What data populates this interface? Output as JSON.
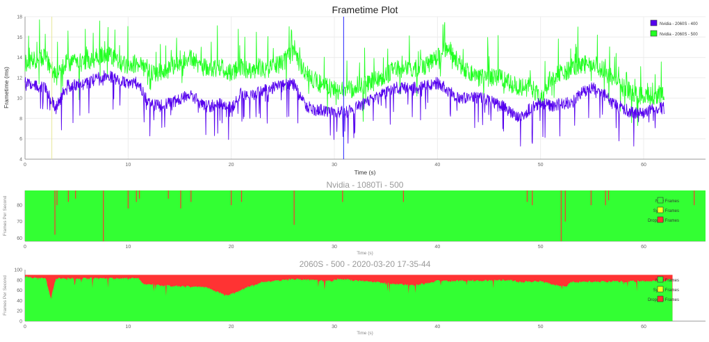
{
  "chart_data": [
    {
      "type": "line",
      "title": "Frametime Plot",
      "xlabel": "Time (s)",
      "ylabel": "Frametime (ms)",
      "xlim": [
        0,
        66
      ],
      "ylim": [
        4,
        18
      ],
      "x_ticks": [
        "0",
        "10",
        "20",
        "30",
        "40",
        "50",
        "60"
      ],
      "y_ticks": [
        "4",
        "6",
        "8",
        "10",
        "12",
        "14",
        "16",
        "18"
      ],
      "grid": true,
      "legend_position": "top-right",
      "markers": [
        {
          "x": 2.6,
          "color": "#e6e69a"
        },
        {
          "x": 30.9,
          "color": "#2222ff"
        }
      ],
      "series": [
        {
          "name": "Nvidia - 2060S - 400",
          "color": "#5500ee",
          "x": [
            0,
            2,
            3,
            4,
            5,
            6,
            7,
            8,
            9,
            10,
            11,
            12,
            13,
            14,
            15,
            16,
            17,
            18,
            19,
            20,
            21,
            22,
            23,
            24,
            25,
            26,
            27,
            28,
            29,
            30,
            31,
            32,
            33,
            34,
            35,
            36,
            37,
            38,
            39,
            40,
            41,
            42,
            43,
            44,
            45,
            46,
            47,
            48,
            49,
            50,
            51,
            52,
            53,
            54,
            55,
            56,
            57,
            58,
            59,
            60,
            61,
            62
          ],
          "values": [
            11.5,
            11,
            9,
            11.2,
            11.3,
            11.4,
            12,
            12.2,
            11.8,
            11.5,
            11.5,
            9.5,
            9.2,
            9.5,
            9.8,
            10.5,
            9.5,
            9.2,
            9.5,
            9,
            10.5,
            10.2,
            10.8,
            11,
            11.2,
            11.5,
            9.5,
            8.8,
            8.8,
            8.5,
            8.7,
            9,
            9.5,
            10,
            10.5,
            11,
            11,
            11,
            11.2,
            11.5,
            10.8,
            10,
            10,
            10,
            9.8,
            9.5,
            8.7,
            8,
            9,
            9.5,
            9.2,
            9.5,
            9.5,
            10.5,
            11,
            10.5,
            9.5,
            9,
            8.5,
            8.5,
            9,
            9
          ],
          "noise": [
            0.6,
            1.2
          ]
        },
        {
          "name": "Nvidia - 2060S - 500",
          "color": "#22ff22",
          "x": [
            0,
            2,
            3,
            4,
            5,
            6,
            7,
            8,
            9,
            10,
            11,
            12,
            13,
            14,
            15,
            16,
            17,
            18,
            19,
            20,
            21,
            22,
            23,
            24,
            25,
            26,
            27,
            28,
            29,
            30,
            31,
            32,
            33,
            34,
            35,
            36,
            37,
            38,
            39,
            40,
            41,
            42,
            43,
            44,
            45,
            46,
            47,
            48,
            49,
            50,
            51,
            52,
            53,
            54,
            55,
            56,
            57,
            58,
            59,
            60,
            61,
            62
          ],
          "values": [
            13.5,
            14,
            12,
            13.5,
            13.5,
            13.5,
            14,
            14.5,
            13.5,
            13.2,
            13.5,
            12.5,
            12.5,
            13,
            13.5,
            14,
            13.2,
            12.8,
            13,
            12.5,
            13,
            12.5,
            12.8,
            13,
            13.5,
            14.5,
            12.8,
            11.8,
            11.2,
            10.8,
            10.7,
            11,
            11.3,
            11.8,
            12.2,
            12.8,
            13,
            13,
            13.2,
            14,
            15,
            13.5,
            12.5,
            12,
            12,
            12,
            11.5,
            11,
            11.2,
            10,
            12,
            12.5,
            12.8,
            13.2,
            13.5,
            12.8,
            12,
            11,
            10.5,
            10.2,
            10.2,
            10.5
          ],
          "noise": [
            0.9,
            1.8
          ]
        }
      ]
    },
    {
      "type": "area",
      "title": "Nvidia - 1080Ti - 500",
      "xlabel": "Time (s)",
      "ylabel": "Frames Per Second",
      "xlim": [
        0,
        66
      ],
      "ylim": [
        58,
        89
      ],
      "x_ticks": [
        "0",
        "10",
        "20",
        "30",
        "40",
        "50",
        "60"
      ],
      "y_ticks": [
        "60",
        "70",
        "80"
      ],
      "legend_position": "right",
      "legend": [
        {
          "label": "New Frames",
          "color": "#33ff33"
        },
        {
          "label": "Synth Frames",
          "color": "#ffff22"
        },
        {
          "label": "Dropped Frames",
          "color": "#ff3333"
        }
      ],
      "ceiling": 89,
      "x_end": 66,
      "drops": [
        {
          "x": 2.9,
          "to": 62
        },
        {
          "x": 3.1,
          "to": 80
        },
        {
          "x": 4.2,
          "to": 82
        },
        {
          "x": 4.9,
          "to": 84
        },
        {
          "x": 7.6,
          "to": 58
        },
        {
          "x": 10.0,
          "to": 78
        },
        {
          "x": 10.8,
          "to": 82
        },
        {
          "x": 11.1,
          "to": 84
        },
        {
          "x": 13.9,
          "to": 84
        },
        {
          "x": 15.1,
          "to": 78
        },
        {
          "x": 16.1,
          "to": 82
        },
        {
          "x": 20.0,
          "to": 80
        },
        {
          "x": 21.0,
          "to": 82
        },
        {
          "x": 26.1,
          "to": 68
        },
        {
          "x": 30.8,
          "to": 82
        },
        {
          "x": 36.7,
          "to": 82
        },
        {
          "x": 48.7,
          "to": 82
        },
        {
          "x": 49.2,
          "to": 80
        },
        {
          "x": 52.0,
          "to": 58
        },
        {
          "x": 52.4,
          "to": 70
        },
        {
          "x": 54.9,
          "to": 80
        },
        {
          "x": 56.3,
          "to": 80
        },
        {
          "x": 56.6,
          "to": 83
        },
        {
          "x": 64.9,
          "to": 80
        }
      ]
    },
    {
      "type": "area",
      "title": "2060S - 500 - 2020-03-20 17-35-44",
      "xlabel": "Time (s)",
      "ylabel": "Frames Per Second",
      "xlim": [
        0,
        66
      ],
      "ylim": [
        0,
        100
      ],
      "x_ticks": [
        "0",
        "10",
        "20",
        "30",
        "40",
        "50",
        "60"
      ],
      "y_ticks": [
        "0",
        "20",
        "40",
        "60",
        "80",
        "100"
      ],
      "legend_position": "right",
      "legend": [
        {
          "label": "New Frames",
          "color": "#33ff33"
        },
        {
          "label": "Synth Frames",
          "color": "#ffff22"
        },
        {
          "label": "Dropped Frames",
          "color": "#ff3333"
        }
      ],
      "ceiling": 90,
      "x_end": 62.8,
      "drop_profile": {
        "x": [
          0,
          2,
          2.5,
          3,
          11,
          11.5,
          13,
          14.5,
          17.5,
          18.5,
          19.5,
          20.5,
          21.5,
          23,
          26,
          29.5,
          30.5,
          35,
          36,
          37.5,
          38.5,
          40,
          47,
          48,
          50,
          51.5,
          52.5,
          53,
          62,
          62.8
        ],
        "values": [
          88,
          86,
          45,
          85,
          85,
          74,
          72,
          70,
          68,
          60,
          52,
          58,
          68,
          78,
          84,
          80,
          84,
          76,
          74,
          72,
          74,
          80,
          82,
          78,
          80,
          72,
          70,
          78,
          80,
          84
        ]
      }
    }
  ]
}
